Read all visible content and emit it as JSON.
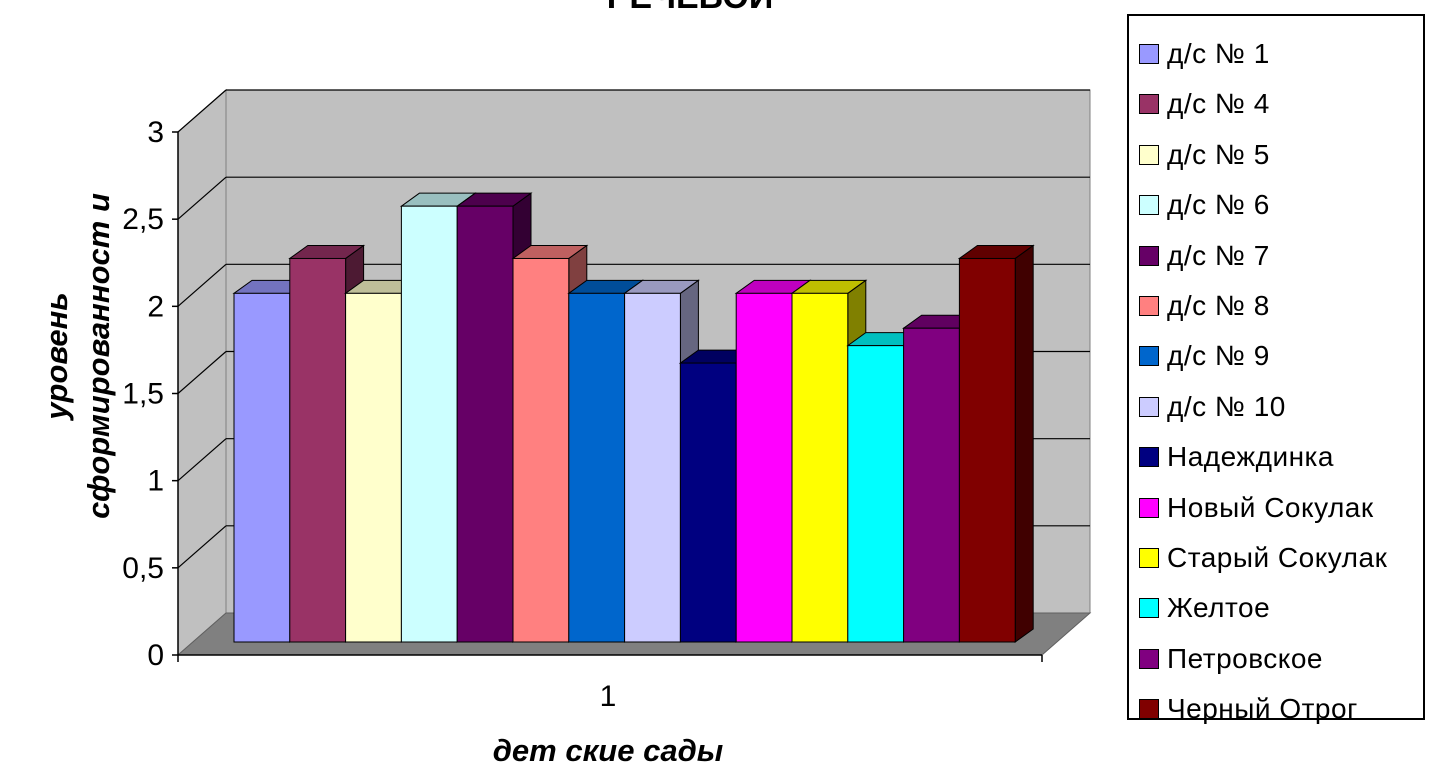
{
  "chart_data": {
    "type": "bar",
    "title": "РЕЧЕВОЙ",
    "xlabel": "дет ские сады",
    "ylabel_lines": [
      "уровень",
      "сформированност и"
    ],
    "ylim": [
      0,
      3
    ],
    "yticks": [
      "0",
      "0,5",
      "1",
      "1,5",
      "2",
      "2,5",
      "3"
    ],
    "ytick_values": [
      0,
      0.5,
      1,
      1.5,
      2,
      2.5,
      3
    ],
    "categories": [
      "1"
    ],
    "legend_position": "right",
    "grid": true,
    "series": [
      {
        "name": "д/с № 1",
        "values": [
          2.0
        ],
        "color": "#9999ff"
      },
      {
        "name": "д/с № 4",
        "values": [
          2.2
        ],
        "color": "#993366"
      },
      {
        "name": "д/с № 5",
        "values": [
          2.0
        ],
        "color": "#ffffcc"
      },
      {
        "name": "д/с № 6",
        "values": [
          2.5
        ],
        "color": "#ccffff"
      },
      {
        "name": "д/с № 7",
        "values": [
          2.5
        ],
        "color": "#660066"
      },
      {
        "name": "д/с № 8",
        "values": [
          2.2
        ],
        "color": "#ff8080"
      },
      {
        "name": "д/с № 9",
        "values": [
          2.0
        ],
        "color": "#0066cc"
      },
      {
        "name": "д/с № 10",
        "values": [
          2.0
        ],
        "color": "#ccccff"
      },
      {
        "name": "Надеждинка",
        "values": [
          1.6
        ],
        "color": "#000080"
      },
      {
        "name": "Новый Сокулак",
        "values": [
          2.0
        ],
        "color": "#ff00ff"
      },
      {
        "name": "Старый Сокулак",
        "values": [
          2.0
        ],
        "color": "#ffff00"
      },
      {
        "name": "Желтое",
        "values": [
          1.7
        ],
        "color": "#00ffff"
      },
      {
        "name": "Петровское",
        "values": [
          1.8
        ],
        "color": "#800080"
      },
      {
        "name": "Черный Отрог",
        "values": [
          2.2
        ],
        "color": "#800000"
      }
    ]
  }
}
